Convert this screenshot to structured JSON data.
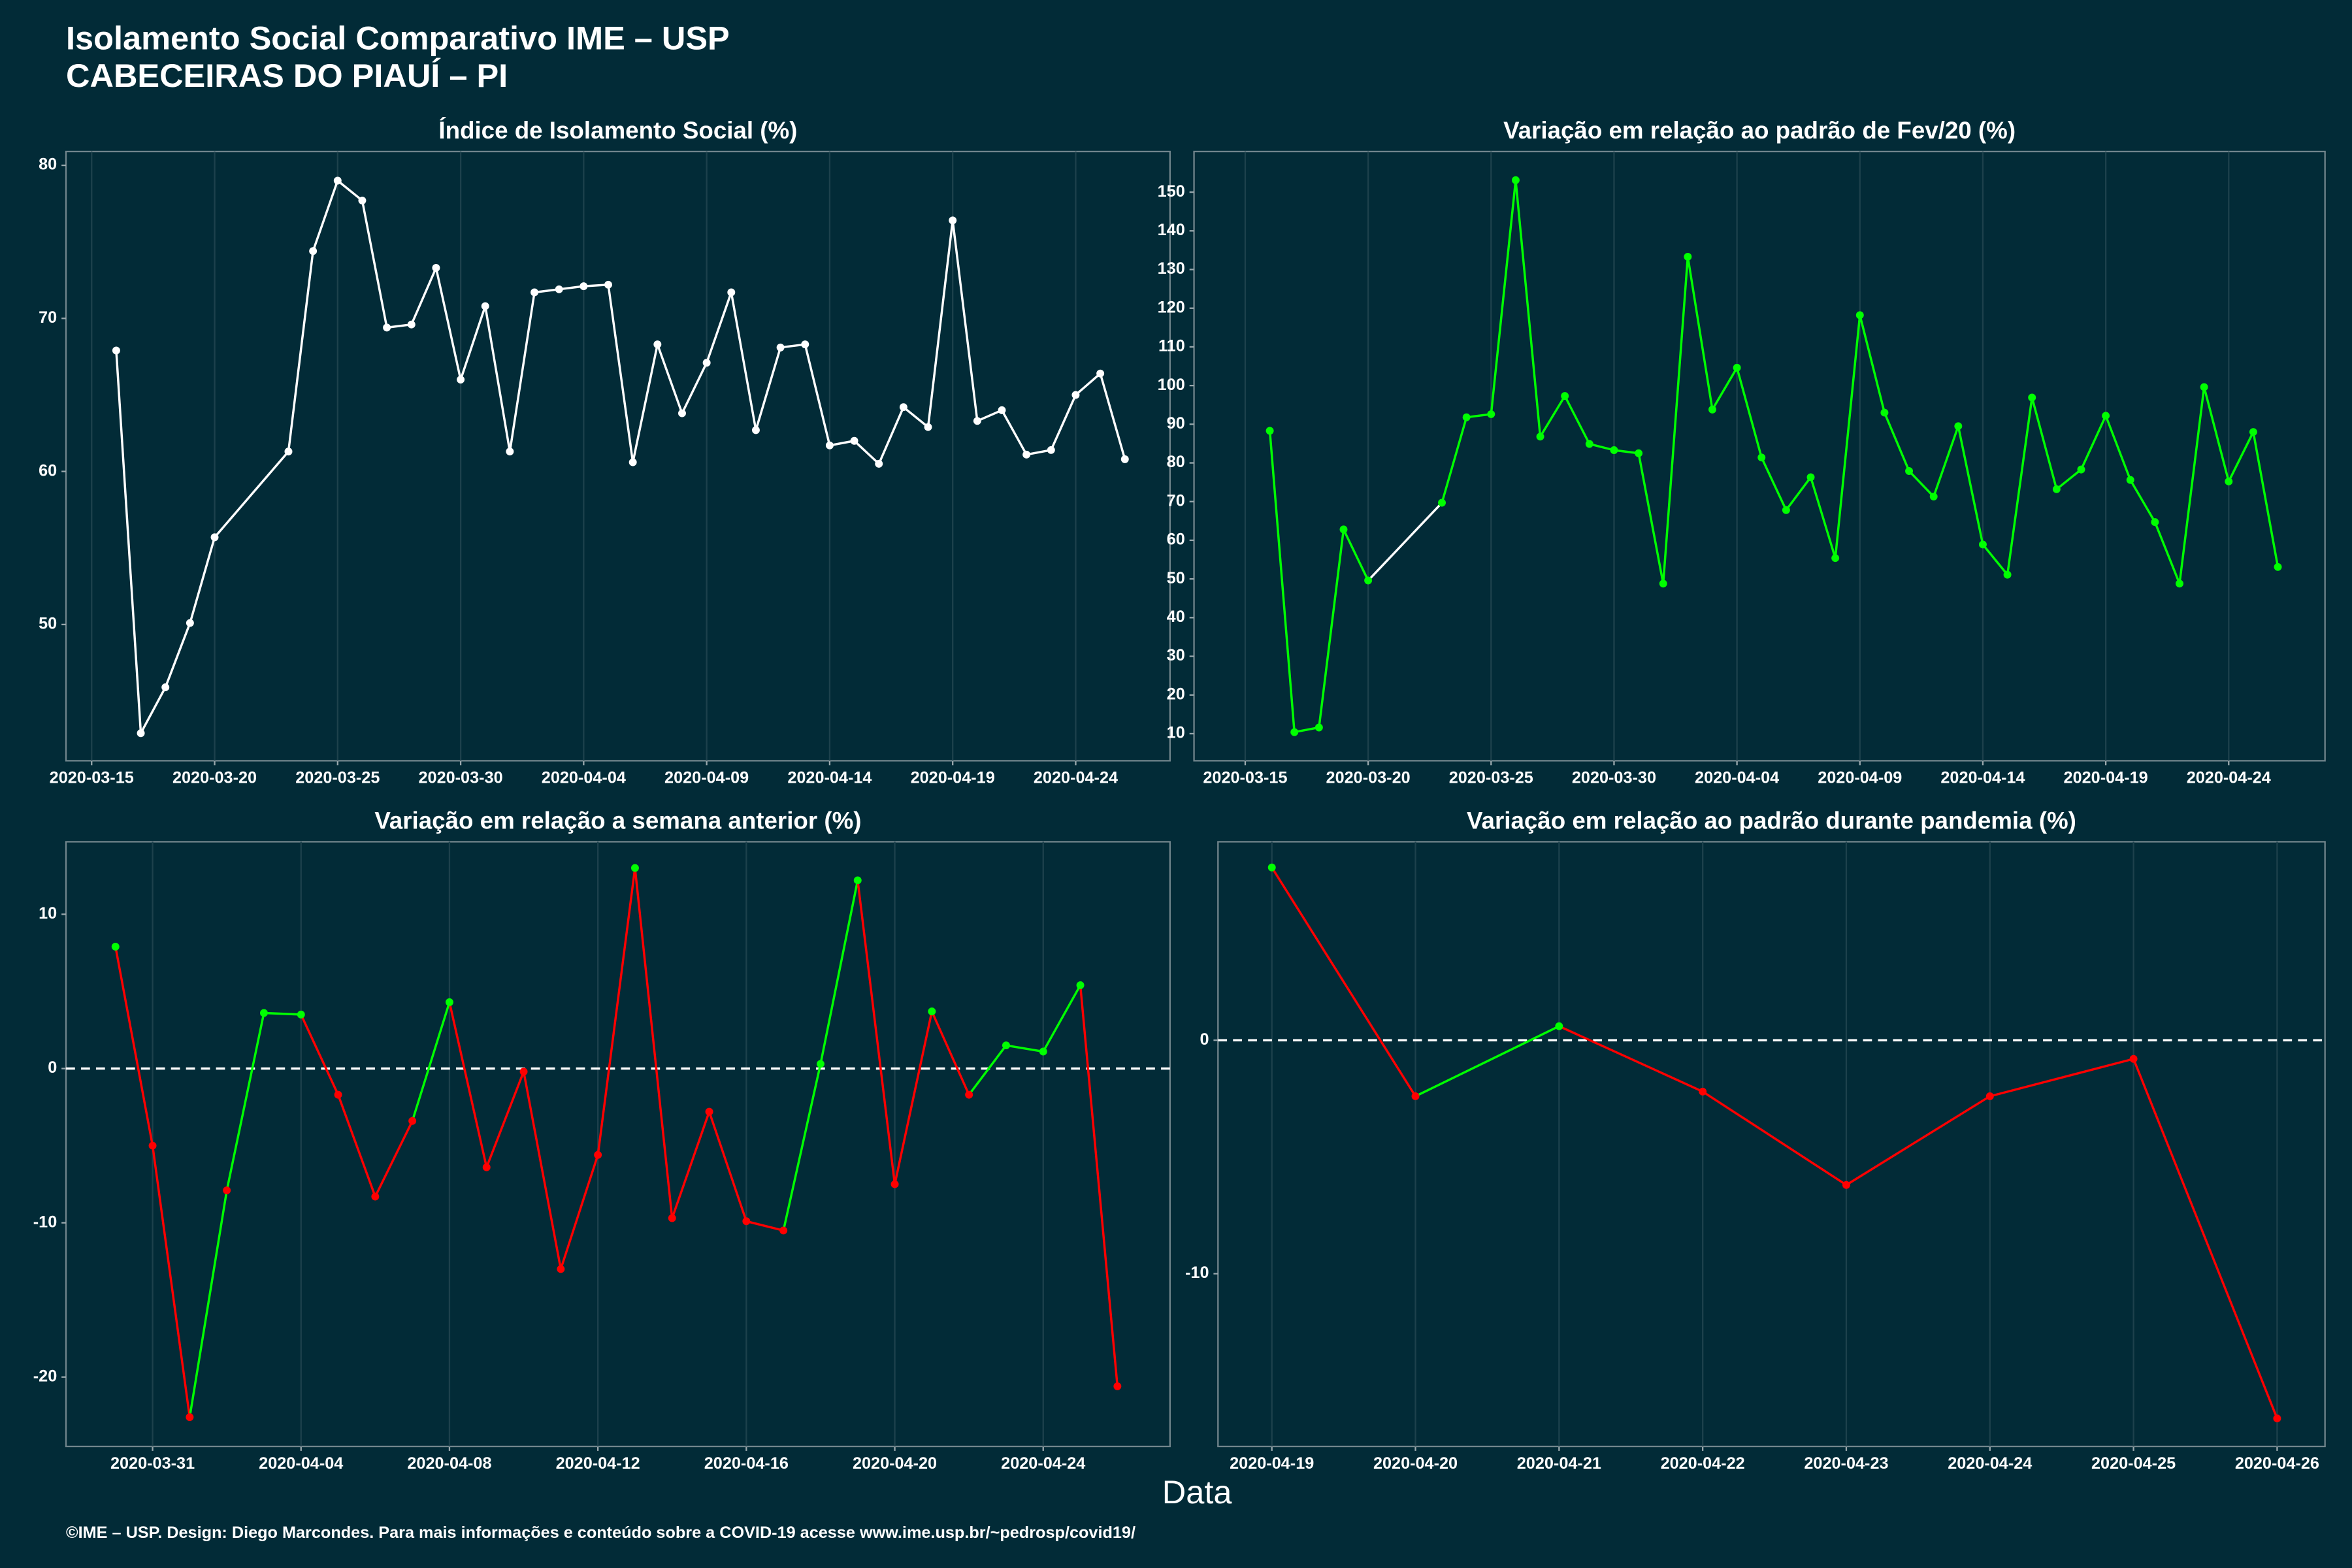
{
  "page": {
    "title": "Isolamento Social Comparativo IME – USP",
    "subtitle": "CABECEIRAS DO PIAUÍ – PI",
    "xlabel": "Data",
    "caption": "©IME – USP. Design: Diego Marcondes. Para mais informações e conteúdo sobre a COVID-19 acesse www.ime.usp.br/~pedrosp/covid19/"
  },
  "chart_data": [
    {
      "type": "line",
      "title": "Índice de Isolamento Social (%)",
      "color": "#ffffff",
      "x": [
        "2020-03-16",
        "2020-03-17",
        "2020-03-18",
        "2020-03-19",
        "2020-03-20",
        "2020-03-23",
        "2020-03-24",
        "2020-03-25",
        "2020-03-26",
        "2020-03-27",
        "2020-03-28",
        "2020-03-29",
        "2020-03-30",
        "2020-03-31",
        "2020-04-01",
        "2020-04-02",
        "2020-04-03",
        "2020-04-04",
        "2020-04-05",
        "2020-04-06",
        "2020-04-07",
        "2020-04-08",
        "2020-04-09",
        "2020-04-10",
        "2020-04-11",
        "2020-04-12",
        "2020-04-13",
        "2020-04-14",
        "2020-04-15",
        "2020-04-16",
        "2020-04-17",
        "2020-04-18",
        "2020-04-19",
        "2020-04-20",
        "2020-04-21",
        "2020-04-22",
        "2020-04-23",
        "2020-04-24",
        "2020-04-25",
        "2020-04-26"
      ],
      "values": [
        67.9,
        42.9,
        45.9,
        50.1,
        55.7,
        61.3,
        74.4,
        79.0,
        77.7,
        69.4,
        69.6,
        73.3,
        66.0,
        70.8,
        61.3,
        71.7,
        71.9,
        72.1,
        72.2,
        60.6,
        68.3,
        63.8,
        67.1,
        71.7,
        62.7,
        68.1,
        68.3,
        61.7,
        62.0,
        60.5,
        64.2,
        62.9,
        76.4,
        63.3,
        64.0,
        61.1,
        61.4,
        65.0,
        66.4,
        60.8
      ],
      "xlim": [
        "2020-03-13T23:00",
        "2020-04-27T20:00"
      ],
      "xticks": [
        "2020-03-15",
        "2020-03-20",
        "2020-03-25",
        "2020-03-30",
        "2020-04-04",
        "2020-04-09",
        "2020-04-14",
        "2020-04-19",
        "2020-04-24"
      ],
      "ylim": [
        41.1,
        80.9
      ],
      "yticks": [
        50,
        60,
        70,
        80
      ],
      "grid": true
    },
    {
      "type": "line",
      "title": "Variação em relação ao padrão de Fev/20 (%)",
      "color": "#00ff00",
      "x": [
        "2020-03-16",
        "2020-03-17",
        "2020-03-18",
        "2020-03-19",
        "2020-03-20",
        "2020-03-23",
        "2020-03-24",
        "2020-03-25",
        "2020-03-26",
        "2020-03-27",
        "2020-03-28",
        "2020-03-29",
        "2020-03-30",
        "2020-03-31",
        "2020-04-01",
        "2020-04-02",
        "2020-04-03",
        "2020-04-04",
        "2020-04-05",
        "2020-04-06",
        "2020-04-07",
        "2020-04-08",
        "2020-04-09",
        "2020-04-10",
        "2020-04-11",
        "2020-04-12",
        "2020-04-13",
        "2020-04-14",
        "2020-04-15",
        "2020-04-16",
        "2020-04-17",
        "2020-04-18",
        "2020-04-19",
        "2020-04-20",
        "2020-04-21",
        "2020-04-22",
        "2020-04-23",
        "2020-04-24",
        "2020-04-25",
        "2020-04-26"
      ],
      "values": [
        88.3,
        10.4,
        11.6,
        62.8,
        49.6,
        69.7,
        91.8,
        92.6,
        153.1,
        86.8,
        97.3,
        84.9,
        83.3,
        82.5,
        48.8,
        133.3,
        93.8,
        104.6,
        81.4,
        67.8,
        76.3,
        55.4,
        118.2,
        93.0,
        77.9,
        71.3,
        89.5,
        58.9,
        51.1,
        96.9,
        73.2,
        78.3,
        92.2,
        75.6,
        64.7,
        48.8,
        99.6,
        75.2,
        88.0,
        53.1
      ],
      "segment_colors": [
        "#00ff00",
        "#00ff00",
        "#00ff00",
        "#00ff00",
        "#ffffff",
        "#00ff00",
        "#00ff00",
        "#00ff00",
        "#00ff00",
        "#00ff00",
        "#00ff00",
        "#00ff00",
        "#00ff00",
        "#00ff00",
        "#00ff00",
        "#00ff00",
        "#00ff00",
        "#00ff00",
        "#00ff00",
        "#00ff00",
        "#00ff00",
        "#00ff00",
        "#00ff00",
        "#00ff00",
        "#00ff00",
        "#00ff00",
        "#00ff00",
        "#00ff00",
        "#00ff00",
        "#00ff00",
        "#00ff00",
        "#00ff00",
        "#00ff00",
        "#00ff00",
        "#00ff00",
        "#00ff00",
        "#00ff00",
        "#00ff00",
        "#00ff00"
      ],
      "xlim": [
        "2020-03-12T22:00",
        "2020-04-27T22:00"
      ],
      "xticks": [
        "2020-03-15",
        "2020-03-20",
        "2020-03-25",
        "2020-03-30",
        "2020-04-04",
        "2020-04-09",
        "2020-04-14",
        "2020-04-19",
        "2020-04-24"
      ],
      "ylim": [
        3.0,
        160.5
      ],
      "yticks": [
        10,
        20,
        30,
        40,
        50,
        60,
        70,
        80,
        90,
        100,
        110,
        120,
        130,
        140,
        150
      ],
      "grid": true
    },
    {
      "type": "line",
      "title": "Variação em relação a semana anterior (%)",
      "hline": 0,
      "x": [
        "2020-03-30",
        "2020-03-31",
        "2020-04-01",
        "2020-04-02",
        "2020-04-03",
        "2020-04-04",
        "2020-04-05",
        "2020-04-06",
        "2020-04-07",
        "2020-04-08",
        "2020-04-09",
        "2020-04-10",
        "2020-04-11",
        "2020-04-12",
        "2020-04-13",
        "2020-04-14",
        "2020-04-15",
        "2020-04-16",
        "2020-04-17",
        "2020-04-18",
        "2020-04-19",
        "2020-04-20",
        "2020-04-21",
        "2020-04-22",
        "2020-04-23",
        "2020-04-24",
        "2020-04-25",
        "2020-04-26"
      ],
      "values": [
        7.9,
        -5.0,
        -22.6,
        -7.9,
        3.6,
        3.5,
        -1.7,
        -8.3,
        -3.4,
        4.3,
        -6.4,
        -0.2,
        -13.0,
        -5.6,
        13.0,
        -9.7,
        -2.8,
        -9.9,
        -10.5,
        0.3,
        12.2,
        -7.5,
        3.7,
        -1.7,
        1.5,
        1.1,
        5.4,
        -20.6
      ],
      "point_colors": [
        "#00ff00",
        "#ff0000",
        "#ff0000",
        "#ff0000",
        "#00ff00",
        "#00ff00",
        "#ff0000",
        "#ff0000",
        "#ff0000",
        "#00ff00",
        "#ff0000",
        "#ff0000",
        "#ff0000",
        "#ff0000",
        "#00ff00",
        "#ff0000",
        "#ff0000",
        "#ff0000",
        "#ff0000",
        "#00ff00",
        "#00ff00",
        "#ff0000",
        "#00ff00",
        "#ff0000",
        "#00ff00",
        "#00ff00",
        "#00ff00",
        "#ff0000"
      ],
      "segment_colors": [
        "#ff0000",
        "#ff0000",
        "#00ff00",
        "#00ff00",
        "#00ff00",
        "#ff0000",
        "#ff0000",
        "#ff0000",
        "#00ff00",
        "#ff0000",
        "#ff0000",
        "#ff0000",
        "#ff0000",
        "#ff0000",
        "#ff0000",
        "#ff0000",
        "#ff0000",
        "#ff0000",
        "#00ff00",
        "#00ff00",
        "#ff0000",
        "#ff0000",
        "#ff0000",
        "#00ff00",
        "#00ff00",
        "#00ff00",
        "#ff0000"
      ],
      "xlim": [
        "2020-03-28T16:00",
        "2020-04-27T10:00"
      ],
      "xticks": [
        "2020-03-31",
        "2020-04-04",
        "2020-04-08",
        "2020-04-12",
        "2020-04-16",
        "2020-04-20",
        "2020-04-24"
      ],
      "ylim": [
        -24.5,
        14.7
      ],
      "yticks": [
        -20,
        -10,
        0,
        10
      ],
      "grid": true
    },
    {
      "type": "line",
      "title": "Variação em relação ao padrão durante pandemia (%)",
      "hline": 0,
      "x": [
        "2020-04-19",
        "2020-04-20",
        "2020-04-21",
        "2020-04-22",
        "2020-04-23",
        "2020-04-24",
        "2020-04-25",
        "2020-04-26"
      ],
      "values": [
        7.4,
        -2.4,
        0.6,
        -2.2,
        -6.2,
        -2.4,
        -0.8,
        -16.2
      ],
      "point_colors": [
        "#00ff00",
        "#ff0000",
        "#00ff00",
        "#ff0000",
        "#ff0000",
        "#ff0000",
        "#ff0000",
        "#ff0000"
      ],
      "segment_colors": [
        "#ff0000",
        "#00ff00",
        "#ff0000",
        "#ff0000",
        "#ff0000",
        "#ff0000",
        "#ff0000"
      ],
      "xlim": [
        "2020-04-18T15:00",
        "2020-04-26T08:00"
      ],
      "xticks": [
        "2020-04-19",
        "2020-04-20",
        "2020-04-21",
        "2020-04-22",
        "2020-04-23",
        "2020-04-24",
        "2020-04-25",
        "2020-04-26"
      ],
      "ylim": [
        -17.4,
        8.5
      ],
      "yticks": [
        -10,
        0
      ],
      "grid": true
    }
  ]
}
